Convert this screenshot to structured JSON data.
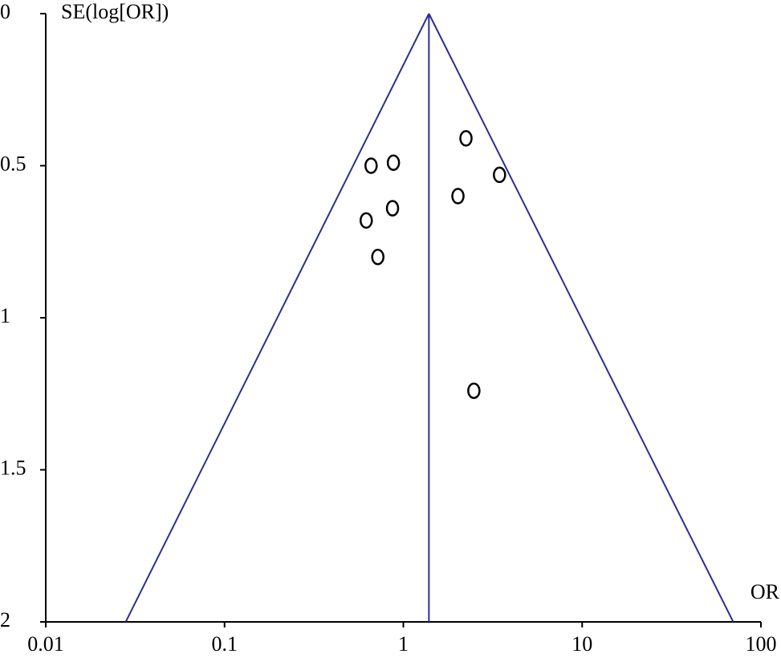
{
  "chart_data": {
    "type": "scatter",
    "y_label": "SE(log[OR])",
    "x_label": "OR",
    "x": [
      2.24,
      0.66,
      0.88,
      3.45,
      2.02,
      0.87,
      0.62,
      0.72,
      2.48
    ],
    "values": [
      0.41,
      0.5,
      0.49,
      0.53,
      0.6,
      0.64,
      0.68,
      0.8,
      1.24
    ],
    "xlim": [
      0.01,
      100
    ],
    "xticks": [
      0.01,
      0.1,
      1,
      10,
      100
    ],
    "x_log": true,
    "ylim": [
      0,
      2
    ],
    "yticks": [
      0,
      0.5,
      1,
      1.5,
      2
    ],
    "y_inverted": true,
    "pooled_or": 1.39,
    "funnel_bottom": [
      0.028,
      70
    ],
    "color": "#000000",
    "funnel_color": "#2b2f8f"
  }
}
